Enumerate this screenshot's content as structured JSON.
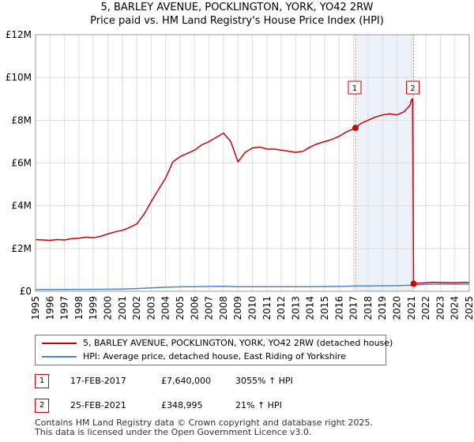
{
  "title_line1": "5, BARLEY AVENUE, POCKLINGTON, YORK, YO42 2RW",
  "title_line2": "Price paid vs. HM Land Registry's House Price Index (HPI)",
  "chart_data": {
    "type": "line",
    "title": "5, BARLEY AVENUE, POCKLINGTON, YORK, YO42 2RW — Price paid vs. HM Land Registry's House Price Index (HPI)",
    "xlabel": "",
    "ylabel": "",
    "xlim": [
      1995,
      2025
    ],
    "ylim": [
      0,
      12000000
    ],
    "y_ticks": [
      {
        "value": 0,
        "label": "£0"
      },
      {
        "value": 2000000,
        "label": "£2M"
      },
      {
        "value": 4000000,
        "label": "£4M"
      },
      {
        "value": 6000000,
        "label": "£6M"
      },
      {
        "value": 8000000,
        "label": "£8M"
      },
      {
        "value": 10000000,
        "label": "£10M"
      },
      {
        "value": 12000000,
        "label": "£12M"
      }
    ],
    "x_ticks": [
      "1995",
      "1996",
      "1997",
      "1998",
      "1999",
      "2000",
      "2001",
      "2002",
      "2003",
      "2004",
      "2005",
      "2006",
      "2007",
      "2008",
      "2009",
      "2010",
      "2011",
      "2012",
      "2013",
      "2014",
      "2015",
      "2016",
      "2017",
      "2018",
      "2019",
      "2020",
      "2021",
      "2022",
      "2023",
      "2024",
      "2025"
    ],
    "grid": true,
    "series": [
      {
        "name": "5, BARLEY AVENUE, POCKLINGTON, YORK, YO42 2RW (detached house)",
        "color": "#cc0000",
        "points": [
          [
            1995.0,
            2420000
          ],
          [
            1995.5,
            2400000
          ],
          [
            1996.0,
            2380000
          ],
          [
            1996.5,
            2420000
          ],
          [
            1997.0,
            2400000
          ],
          [
            1997.5,
            2460000
          ],
          [
            1998.0,
            2480000
          ],
          [
            1998.5,
            2530000
          ],
          [
            1999.0,
            2500000
          ],
          [
            1999.5,
            2570000
          ],
          [
            2000.0,
            2680000
          ],
          [
            2000.5,
            2780000
          ],
          [
            2001.0,
            2850000
          ],
          [
            2001.5,
            2980000
          ],
          [
            2002.0,
            3150000
          ],
          [
            2002.5,
            3600000
          ],
          [
            2003.0,
            4200000
          ],
          [
            2003.5,
            4750000
          ],
          [
            2004.0,
            5300000
          ],
          [
            2004.5,
            6050000
          ],
          [
            2005.0,
            6300000
          ],
          [
            2005.5,
            6450000
          ],
          [
            2006.0,
            6600000
          ],
          [
            2006.5,
            6850000
          ],
          [
            2007.0,
            7000000
          ],
          [
            2007.5,
            7200000
          ],
          [
            2008.0,
            7400000
          ],
          [
            2008.5,
            7000000
          ],
          [
            2009.0,
            6050000
          ],
          [
            2009.5,
            6500000
          ],
          [
            2010.0,
            6700000
          ],
          [
            2010.5,
            6750000
          ],
          [
            2011.0,
            6650000
          ],
          [
            2011.5,
            6650000
          ],
          [
            2012.0,
            6600000
          ],
          [
            2012.5,
            6550000
          ],
          [
            2013.0,
            6500000
          ],
          [
            2013.5,
            6550000
          ],
          [
            2014.0,
            6750000
          ],
          [
            2014.5,
            6900000
          ],
          [
            2015.0,
            7000000
          ],
          [
            2015.5,
            7100000
          ],
          [
            2016.0,
            7250000
          ],
          [
            2016.5,
            7450000
          ],
          [
            2017.13,
            7640000
          ],
          [
            2017.5,
            7850000
          ],
          [
            2018.0,
            8000000
          ],
          [
            2018.5,
            8150000
          ],
          [
            2019.0,
            8250000
          ],
          [
            2019.5,
            8300000
          ],
          [
            2020.0,
            8250000
          ],
          [
            2020.5,
            8400000
          ],
          [
            2020.9,
            8700000
          ],
          [
            2021.0,
            8950000
          ],
          [
            2021.08,
            9000000
          ],
          [
            2021.15,
            348995
          ],
          [
            2021.5,
            380000
          ],
          [
            2022.0,
            400000
          ],
          [
            2022.5,
            420000
          ],
          [
            2023.0,
            410000
          ],
          [
            2023.5,
            405000
          ],
          [
            2024.0,
            400000
          ],
          [
            2024.5,
            410000
          ],
          [
            2025.0,
            415000
          ]
        ]
      },
      {
        "name": "HPI: Average price, detached house, East Riding of Yorkshire",
        "color": "#4f86c6",
        "points": [
          [
            1995.0,
            76000
          ],
          [
            1997.0,
            80000
          ],
          [
            1999.0,
            90000
          ],
          [
            2001.0,
            105000
          ],
          [
            2002.0,
            125000
          ],
          [
            2003.0,
            155000
          ],
          [
            2004.0,
            190000
          ],
          [
            2005.0,
            205000
          ],
          [
            2006.0,
            215000
          ],
          [
            2007.0,
            225000
          ],
          [
            2008.0,
            230000
          ],
          [
            2009.0,
            210000
          ],
          [
            2010.0,
            215000
          ],
          [
            2012.0,
            210000
          ],
          [
            2014.0,
            212000
          ],
          [
            2016.0,
            225000
          ],
          [
            2017.13,
            242000
          ],
          [
            2018.0,
            250000
          ],
          [
            2019.0,
            255000
          ],
          [
            2020.0,
            262000
          ],
          [
            2021.15,
            288000
          ],
          [
            2022.0,
            320000
          ],
          [
            2023.0,
            335000
          ],
          [
            2024.0,
            330000
          ],
          [
            2025.0,
            335000
          ]
        ]
      }
    ],
    "sales": [
      {
        "label": "1",
        "year": 2017.13,
        "value": 7640000
      },
      {
        "label": "2",
        "year": 2021.15,
        "value": 348995
      }
    ]
  },
  "legend": {
    "items": [
      {
        "label": "5, BARLEY AVENUE, POCKLINGTON, YORK, YO42 2RW (detached house)",
        "color": "#cc0000"
      },
      {
        "label": "HPI: Average price, detached house, East Riding of Yorkshire",
        "color": "#4f86c6"
      }
    ]
  },
  "table": {
    "rows": [
      {
        "num": "1",
        "date": "17-FEB-2017",
        "price": "£7,640,000",
        "hpi": "3055% ↑ HPI"
      },
      {
        "num": "2",
        "date": "25-FEB-2021",
        "price": "£348,995",
        "hpi": "21% ↑ HPI"
      }
    ]
  },
  "footer": {
    "line1": "Contains HM Land Registry data © Crown copyright and database right 2025.",
    "line2": "This data is licensed under the Open Government Licence v3.0."
  }
}
